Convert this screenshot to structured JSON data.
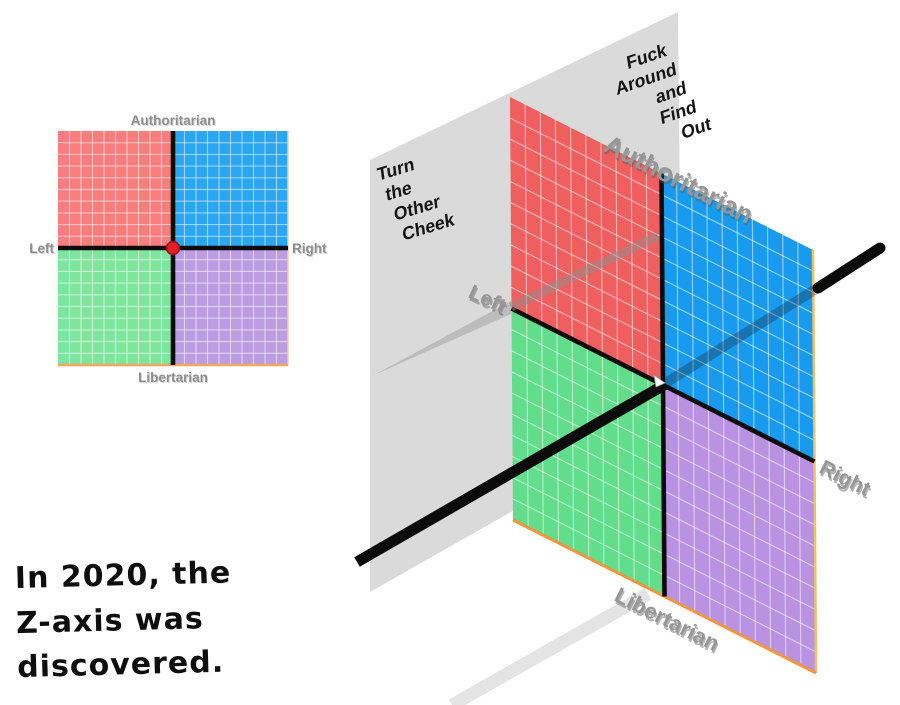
{
  "caption": {
    "lines": [
      "In 2020, the",
      "Z-axis was",
      "discovered."
    ]
  },
  "compass_2d": {
    "labels": {
      "top": "Authoritarian",
      "bottom": "Libertarian",
      "left": "Left",
      "right": "Right"
    },
    "colors": {
      "top_left": "#F87E7E",
      "top_right": "#2BA6F0",
      "bottom_left": "#7FE59D",
      "bottom_right": "#BD9DE2",
      "center_dot": "#E31E24",
      "axis": "#0B0B0B",
      "border_bottom": "#F2A95C",
      "border_right": "#F6CF9E"
    }
  },
  "compass_3d": {
    "labels": {
      "top": "Authoritarian",
      "bottom": "Libertarian",
      "left": "Left",
      "right": "Right"
    },
    "z_axis_front_label_lines": [
      "Turn",
      "the",
      "Other",
      "Cheek"
    ],
    "z_axis_back_label_lines": [
      "Fuck",
      "Around",
      "and",
      "Find",
      "Out"
    ],
    "colors": {
      "top_left": "#EF5F5F",
      "top_right": "#189BEF",
      "bottom_left": "#62DD8B",
      "bottom_right": "#B992E2",
      "plane": "#DADADA",
      "axis": "#0B0B0B",
      "z_axis": "#0B0B0B",
      "border_bottom": "#F2953F",
      "border_right": "#EFC065"
    }
  }
}
